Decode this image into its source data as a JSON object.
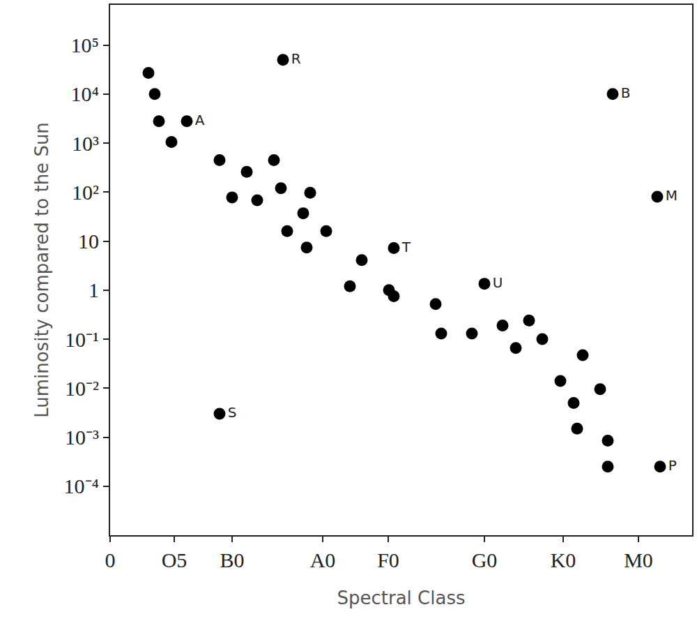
{
  "chart_data": {
    "type": "scatter",
    "x_label": "Spectral Class",
    "y_label": "Luminosity compared to the Sun",
    "log": "y",
    "grid": false,
    "marker": "circle",
    "color": "#000000",
    "x": [
      5.5,
      6.4,
      7.0,
      11.0,
      8.8,
      15.7,
      19.6,
      23.5,
      17.5,
      21.1,
      24.5,
      28.7,
      27.7,
      25.4,
      31.0,
      28.2,
      24.8,
      72.1,
      78.5,
      40.7,
      36.1,
      34.4,
      40.0,
      40.7,
      53.7,
      46.7,
      47.5,
      51.9,
      56.3,
      60.1,
      58.2,
      62.0,
      67.8,
      64.6,
      66.5,
      70.3,
      67.0,
      71.4,
      71.4,
      78.9,
      15.7
    ],
    "values": [
      27000,
      10000,
      2800,
      2800,
      1050,
      450,
      260,
      450,
      78,
      68,
      120,
      97,
      37,
      16,
      16,
      7.4,
      50000,
      10000,
      80,
      7.2,
      4.1,
      1.2,
      1.0,
      0.75,
      1.35,
      0.52,
      0.13,
      0.13,
      0.19,
      0.24,
      0.066,
      0.1,
      0.047,
      0.014,
      0.005,
      0.0095,
      0.0015,
      0.00085,
      0.00025,
      0.00025,
      0.003
    ],
    "labels": [
      null,
      null,
      null,
      "A",
      null,
      null,
      null,
      null,
      null,
      null,
      null,
      null,
      null,
      null,
      null,
      null,
      "R",
      "B",
      "M",
      "T",
      null,
      null,
      null,
      null,
      "U",
      null,
      null,
      null,
      null,
      null,
      null,
      null,
      null,
      null,
      null,
      null,
      null,
      null,
      null,
      "P",
      "S"
    ],
    "xlim": [
      0,
      83.5
    ],
    "xticks": [
      0,
      {
        "value": 9.2,
        "label": "O5"
      },
      {
        "value": 17.5,
        "label": "B0"
      },
      {
        "value": 30.5,
        "label": "A0"
      },
      {
        "value": 39.9,
        "label": "F0"
      },
      {
        "value": 53.7,
        "label": "G0"
      },
      {
        "value": 65.0,
        "label": "K0"
      },
      {
        "value": 75.8,
        "label": "M0"
      }
    ],
    "ylim": [
      1e-05,
      660000
    ],
    "yticks": [
      {
        "value": 100000,
        "label": "10⁵"
      },
      {
        "value": 10000,
        "label": "10⁴"
      },
      {
        "value": 1000,
        "label": "10³"
      },
      {
        "value": 100,
        "label": "10²"
      },
      10,
      1,
      {
        "value": 0.1,
        "label": "10⁻¹"
      },
      {
        "value": 0.01,
        "label": "10⁻²"
      },
      {
        "value": 0.001,
        "label": "10⁻³"
      },
      {
        "value": 0.0001,
        "label": "10⁻⁴"
      }
    ]
  }
}
